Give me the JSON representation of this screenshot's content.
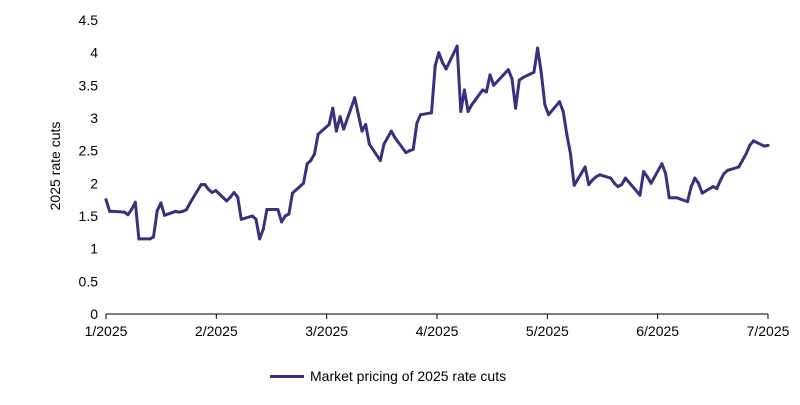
{
  "chart_data": {
    "type": "line",
    "title": "",
    "xlabel": "",
    "ylabel": "2025 rate cuts",
    "xlim": [
      "2025-01-01",
      "2025-07-01"
    ],
    "ylim": [
      0,
      4.5
    ],
    "x_ticks": [
      "1/2025",
      "2/2025",
      "3/2025",
      "4/2025",
      "5/2025",
      "6/2025",
      "7/2025"
    ],
    "y_ticks": [
      "0",
      "0.5",
      "1",
      "1.5",
      "2",
      "2.5",
      "3",
      "3.5",
      "4",
      "4.5"
    ],
    "grid": false,
    "legend_position": "bottom-center",
    "colors": {
      "series": "#3c2f7f",
      "axis": "#000000"
    },
    "series": [
      {
        "name": "Market pricing of 2025 rate cuts",
        "x": [
          "2025-01-01",
          "2025-01-02",
          "2025-01-03",
          "2025-01-06",
          "2025-01-07",
          "2025-01-08",
          "2025-01-09",
          "2025-01-10",
          "2025-01-13",
          "2025-01-14",
          "2025-01-15",
          "2025-01-16",
          "2025-01-17",
          "2025-01-20",
          "2025-01-21",
          "2025-01-22",
          "2025-01-23",
          "2025-01-24",
          "2025-01-27",
          "2025-01-28",
          "2025-01-29",
          "2025-01-30",
          "2025-01-31",
          "2025-02-03",
          "2025-02-04",
          "2025-02-05",
          "2025-02-06",
          "2025-02-07",
          "2025-02-10",
          "2025-02-11",
          "2025-02-12",
          "2025-02-13",
          "2025-02-14",
          "2025-02-17",
          "2025-02-18",
          "2025-02-19",
          "2025-02-20",
          "2025-02-21",
          "2025-02-24",
          "2025-02-25",
          "2025-02-26",
          "2025-02-27",
          "2025-02-28",
          "2025-03-03",
          "2025-03-04",
          "2025-03-05",
          "2025-03-06",
          "2025-03-07",
          "2025-03-10",
          "2025-03-11",
          "2025-03-12",
          "2025-03-13",
          "2025-03-14",
          "2025-03-17",
          "2025-03-18",
          "2025-03-19",
          "2025-03-20",
          "2025-03-21",
          "2025-03-24",
          "2025-03-25",
          "2025-03-26",
          "2025-03-27",
          "2025-03-28",
          "2025-03-31",
          "2025-04-01",
          "2025-04-02",
          "2025-04-03",
          "2025-04-04",
          "2025-04-07",
          "2025-04-08",
          "2025-04-09",
          "2025-04-10",
          "2025-04-11",
          "2025-04-14",
          "2025-04-15",
          "2025-04-16",
          "2025-04-17",
          "2025-04-21",
          "2025-04-22",
          "2025-04-23",
          "2025-04-24",
          "2025-04-25",
          "2025-04-28",
          "2025-04-29",
          "2025-04-30",
          "2025-05-01",
          "2025-05-02",
          "2025-05-05",
          "2025-05-06",
          "2025-05-07",
          "2025-05-08",
          "2025-05-09",
          "2025-05-12",
          "2025-05-13",
          "2025-05-14",
          "2025-05-15",
          "2025-05-16",
          "2025-05-19",
          "2025-05-20",
          "2025-05-21",
          "2025-05-22",
          "2025-05-23",
          "2025-05-27",
          "2025-05-28",
          "2025-05-29",
          "2025-05-30",
          "2025-06-02",
          "2025-06-03",
          "2025-06-04",
          "2025-06-05",
          "2025-06-06",
          "2025-06-09",
          "2025-06-10",
          "2025-06-11",
          "2025-06-12",
          "2025-06-13",
          "2025-06-16",
          "2025-06-17",
          "2025-06-18",
          "2025-06-19",
          "2025-06-20",
          "2025-06-23",
          "2025-06-24",
          "2025-06-25",
          "2025-06-26",
          "2025-06-27",
          "2025-06-30",
          "2025-07-01"
        ],
        "values": [
          1.75,
          1.57,
          1.57,
          1.56,
          1.52,
          1.6,
          1.71,
          1.15,
          1.15,
          1.18,
          1.58,
          1.7,
          1.51,
          1.57,
          1.56,
          1.57,
          1.6,
          1.7,
          1.98,
          1.98,
          1.91,
          1.86,
          1.89,
          1.73,
          1.79,
          1.86,
          1.79,
          1.45,
          1.5,
          1.45,
          1.15,
          1.3,
          1.6,
          1.6,
          1.41,
          1.5,
          1.53,
          1.85,
          2.0,
          2.3,
          2.35,
          2.45,
          2.75,
          2.9,
          3.15,
          2.8,
          3.02,
          2.83,
          3.31,
          3.05,
          2.8,
          2.9,
          2.6,
          2.35,
          2.6,
          2.7,
          2.8,
          2.7,
          2.47,
          2.5,
          2.52,
          2.92,
          3.05,
          3.08,
          3.8,
          4.0,
          3.85,
          3.75,
          4.1,
          3.1,
          3.43,
          3.1,
          3.2,
          3.43,
          3.4,
          3.66,
          3.5,
          3.74,
          3.6,
          3.15,
          3.58,
          3.62,
          3.7,
          4.07,
          3.7,
          3.2,
          3.05,
          3.25,
          3.1,
          2.75,
          2.45,
          1.97,
          2.25,
          1.98,
          2.05,
          2.1,
          2.13,
          2.08,
          2.0,
          1.95,
          1.98,
          2.08,
          1.82,
          2.18,
          2.1,
          2.0,
          2.3,
          2.15,
          1.78,
          1.78,
          1.78,
          1.72,
          1.95,
          2.08,
          2.0,
          1.85,
          1.95,
          1.92,
          2.05,
          2.15,
          2.2,
          2.25,
          2.35,
          2.45,
          2.58,
          2.65,
          2.57,
          2.58
        ]
      }
    ]
  }
}
